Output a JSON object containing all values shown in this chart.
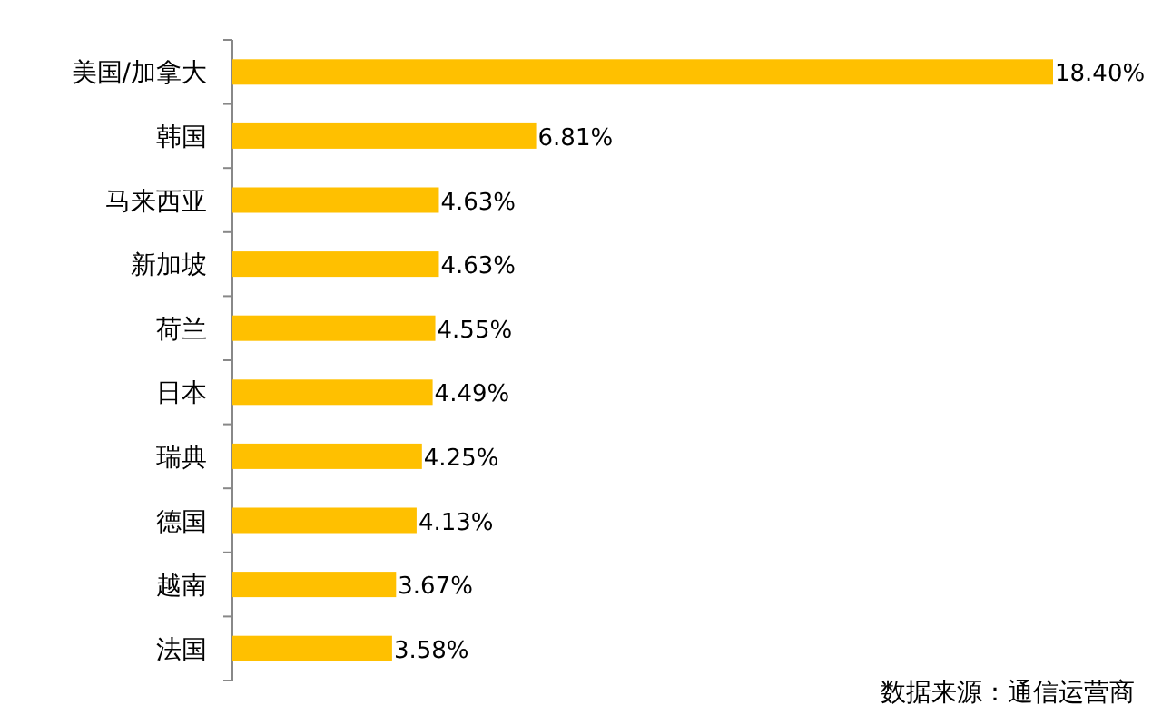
{
  "chart_data": {
    "type": "bar",
    "orientation": "horizontal",
    "categories": [
      "美国/加拿大",
      "韩国",
      "马来西亚",
      "新加坡",
      "荷兰",
      "日本",
      "瑞典",
      "德国",
      "越南",
      "法国"
    ],
    "values": [
      18.4,
      6.81,
      4.63,
      4.63,
      4.55,
      4.49,
      4.25,
      4.13,
      3.67,
      3.58
    ],
    "value_labels": [
      "18.40%",
      "6.81%",
      "4.63%",
      "4.63%",
      "4.55%",
      "4.49%",
      "4.25%",
      "4.13%",
      "3.67%",
      "3.58%"
    ],
    "color": "#ffc000",
    "annotations": [
      "数据来源：通信运营商"
    ]
  }
}
